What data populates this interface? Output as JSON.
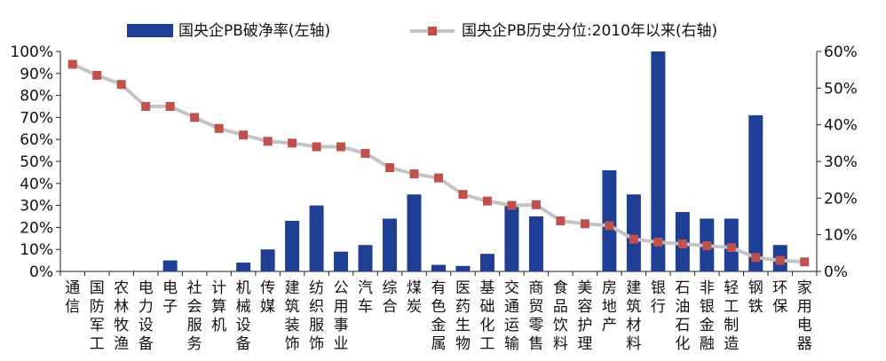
{
  "chart_data": {
    "type": "bar",
    "legend": {
      "placement": "top",
      "series1": "国央企PB破净率(左轴)",
      "series2": "国央企PB历史分位:2010年以来(右轴)"
    },
    "categories": [
      "通信",
      "国防军工",
      "农林牧渔",
      "电力设备",
      "电子",
      "社会服务",
      "计算机",
      "机械设备",
      "传媒",
      "建筑装饰",
      "纺织服饰",
      "公用事业",
      "汽车",
      "综合",
      "煤炭",
      "有色金属",
      "医药生物",
      "基础化工",
      "交通运输",
      "商贸零售",
      "食品饮料",
      "美容护理",
      "房地产",
      "建筑材料",
      "银行",
      "石油石化",
      "非银金融",
      "轻工制造",
      "钢铁",
      "环保",
      "家用电器"
    ],
    "left_axis": {
      "ticks": [
        "0%",
        "10%",
        "20%",
        "30%",
        "40%",
        "50%",
        "60%",
        "70%",
        "80%",
        "90%",
        "100%"
      ],
      "ylim": [
        0,
        100
      ]
    },
    "right_axis": {
      "ticks": [
        "0%",
        "10%",
        "20%",
        "30%",
        "40%",
        "50%",
        "60%"
      ],
      "ylim": [
        0,
        60
      ]
    },
    "series": [
      {
        "name": "国央企PB破净率(左轴)",
        "type": "bar",
        "axis": "left",
        "color": "#1f3f94",
        "values": [
          0,
          0,
          0,
          0,
          5,
          0,
          0,
          4,
          10,
          23,
          30,
          9,
          12,
          24,
          35,
          3,
          2.5,
          8,
          30,
          25,
          0,
          0,
          46,
          35,
          100,
          27,
          24,
          24,
          71,
          12,
          0
        ]
      },
      {
        "name": "国央企PB历史分位:2010年以来(右轴)",
        "type": "line",
        "axis": "right",
        "line_color": "#c4c4c4",
        "marker_color": "#c0504d",
        "values": [
          56.5,
          53.5,
          51,
          45,
          45,
          42,
          39,
          37.2,
          35.5,
          35,
          34,
          34,
          32.2,
          28.3,
          26.6,
          25.5,
          21,
          19.2,
          18,
          18.2,
          13.8,
          13,
          12.5,
          8.8,
          8,
          7.5,
          7,
          6.5,
          3.8,
          3,
          2.6
        ]
      }
    ]
  }
}
